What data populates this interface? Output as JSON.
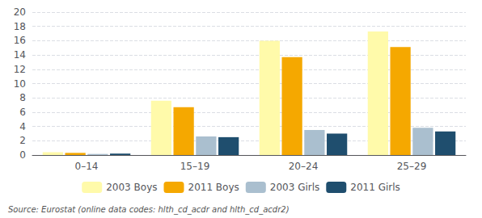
{
  "chart_data": {
    "type": "bar",
    "categories": [
      "0–14",
      "15–19",
      "20–24",
      "25–29"
    ],
    "series": [
      {
        "name": "2003 Boys",
        "color": "#FFFAAA",
        "values": [
          0.4,
          7.6,
          16.0,
          17.3
        ]
      },
      {
        "name": "2011 Boys",
        "color": "#F5A800",
        "values": [
          0.3,
          6.7,
          13.7,
          15.1
        ]
      },
      {
        "name": "2003 Girls",
        "color": "#AABFCF",
        "values": [
          0.15,
          2.6,
          3.5,
          3.8
        ]
      },
      {
        "name": "2011 Girls",
        "color": "#1F4E6E",
        "values": [
          0.2,
          2.5,
          3.0,
          3.3
        ]
      }
    ],
    "ylim": [
      0,
      20
    ],
    "yticks": [
      0,
      2,
      4,
      6,
      8,
      10,
      12,
      14,
      16,
      18,
      20
    ],
    "grid": true,
    "legend": "bottom",
    "annotations": [
      "Source: Eurostat (online data codes: hlth_cd_acdr and hlth_cd_acdr2)"
    ]
  }
}
